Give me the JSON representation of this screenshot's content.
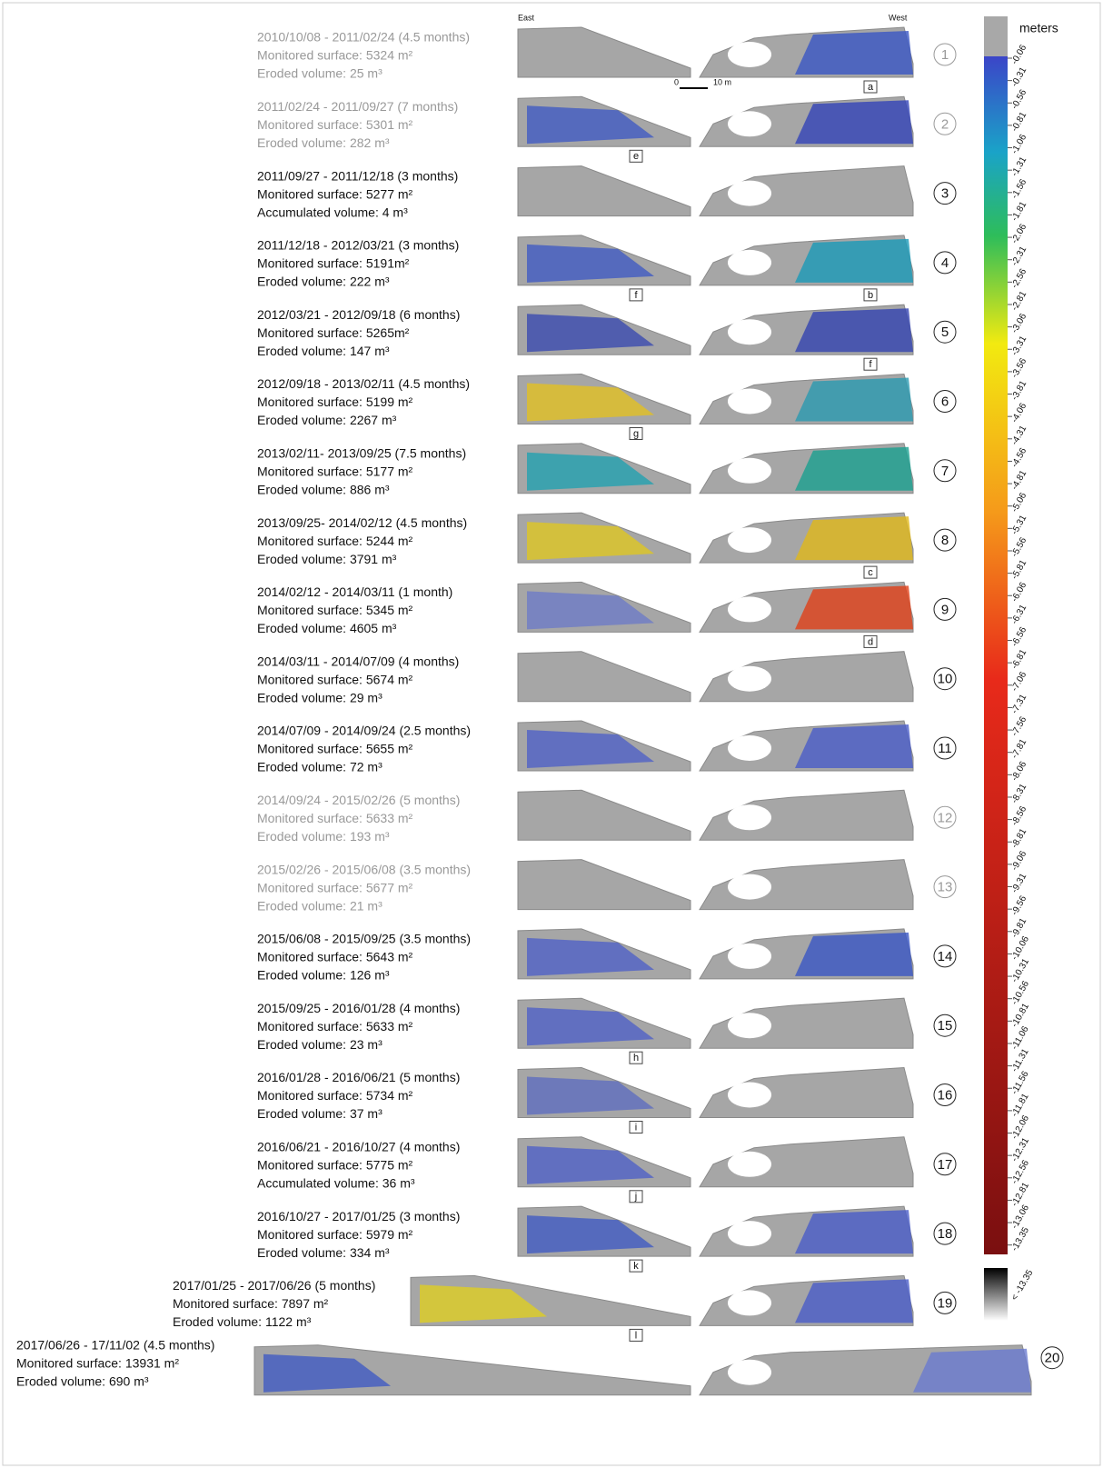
{
  "header": {
    "east": "East",
    "west": "West",
    "scale_start": "0",
    "scale_end": "10 m"
  },
  "rows": [
    {
      "number": "1",
      "period": "2010/10/08 - 2011/02/24 (4.5 months)",
      "surface": "Monitored surface: 5324 m²",
      "volume": "Eroded volume: 25 m³",
      "right_tag": "a",
      "muted": true
    },
    {
      "number": "2",
      "period": "2011/02/24 - 2011/09/27 (7 months)",
      "surface": "Monitored surface: 5301 m²",
      "volume": "Eroded volume: 282 m³",
      "left_tag": "e",
      "muted": true
    },
    {
      "number": "3",
      "period": "2011/09/27 - 2011/12/18 (3 months)",
      "surface": "Monitored surface: 5277 m²",
      "volume": "Accumulated volume: 4 m³"
    },
    {
      "number": "4",
      "period": "2011/12/18 - 2012/03/21 (3 months)",
      "surface": "Monitored surface: 5191m²",
      "volume": "Eroded volume: 222 m³",
      "left_tag": "f",
      "right_tag": "b"
    },
    {
      "number": "5",
      "period": "2012/03/21 - 2012/09/18 (6 months)",
      "surface": "Monitored surface: 5265m²",
      "volume": "Eroded volume: 147 m³",
      "right_tag": "f"
    },
    {
      "number": "6",
      "period": "2012/09/18 - 2013/02/11 (4.5 months)",
      "surface": "Monitored surface: 5199 m²",
      "volume": "Eroded volume: 2267 m³",
      "left_tag": "g"
    },
    {
      "number": "7",
      "period": "2013/02/11- 2013/09/25 (7.5 months)",
      "surface": "Monitored surface: 5177 m²",
      "volume": "Eroded volume: 886 m³"
    },
    {
      "number": "8",
      "period": "2013/09/25- 2014/02/12 (4.5 months)",
      "surface": "Monitored surface: 5244 m²",
      "volume": "Eroded volume: 3791 m³",
      "right_tag": "c"
    },
    {
      "number": "9",
      "period": "2014/02/12 - 2014/03/11 (1 month)",
      "surface": "Monitored surface: 5345 m²",
      "volume": "Eroded volume: 4605 m³",
      "right_tag": "d"
    },
    {
      "number": "10",
      "period": "2014/03/11 - 2014/07/09 (4 months)",
      "surface": "Monitored surface: 5674 m²",
      "volume": "Eroded volume: 29 m³"
    },
    {
      "number": "11",
      "period": "2014/07/09 - 2014/09/24 (2.5 months)",
      "surface": "Monitored surface: 5655 m²",
      "volume": "Eroded volume: 72 m³"
    },
    {
      "number": "12",
      "period": "2014/09/24 - 2015/02/26 (5 months)",
      "surface": "Monitored surface: 5633 m²",
      "volume": "Eroded volume: 193 m³",
      "muted": true
    },
    {
      "number": "13",
      "period": "2015/02/26 - 2015/06/08 (3.5 months)",
      "surface": "Monitored surface: 5677 m²",
      "volume": "Eroded volume: 21 m³",
      "muted": true
    },
    {
      "number": "14",
      "period": "2015/06/08 - 2015/09/25 (3.5 months)",
      "surface": "Monitored surface: 5643 m²",
      "volume": "Eroded volume: 126 m³"
    },
    {
      "number": "15",
      "period": "2015/09/25 - 2016/01/28 (4 months)",
      "surface": "Monitored surface: 5633 m²",
      "volume": "Eroded volume: 23 m³",
      "left_tag": "h"
    },
    {
      "number": "16",
      "period": "2016/01/28 - 2016/06/21 (5 months)",
      "surface": "Monitored surface: 5734 m²",
      "volume": "Eroded volume: 37 m³",
      "left_tag": "i"
    },
    {
      "number": "17",
      "period": "2016/06/21 - 2016/10/27 (4 months)",
      "surface": "Monitored surface: 5775 m²",
      "volume": "Accumulated volume: 36 m³",
      "left_tag": "j"
    },
    {
      "number": "18",
      "period": "2016/10/27 - 2017/01/25 (3 months)",
      "surface": "Monitored surface: 5979 m²",
      "volume": "Eroded volume: 334 m³",
      "left_tag": "k"
    },
    {
      "number": "19",
      "period": "2017/01/25 - 2017/06/26 (5 months)",
      "surface": "Monitored surface: 7897 m²",
      "volume": "Eroded volume: 1122 m³",
      "left_tag": "l"
    },
    {
      "number": "20",
      "period": "2017/06/26 - 17/11/02 (4.5 months)",
      "surface": "Monitored surface: 13931 m²",
      "volume": "Eroded volume: 690 m³"
    }
  ],
  "colorbar": {
    "unit": "meters",
    "below": "< -13.35",
    "labels": [
      "-0.06",
      "-0.31",
      "-0.56",
      "-0.81",
      "-1.06",
      "-1.31",
      "-1.56",
      "-1.81",
      "-2.06",
      "-2.31",
      "-2.56",
      "-2.81",
      "-3.06",
      "-3.31",
      "-3.56",
      "-3.81",
      "-4.06",
      "-4.31",
      "-4.56",
      "-4.81",
      "-5.06",
      "-5.31",
      "-5.56",
      "-5.81",
      "-6.06",
      "-6.31",
      "-6.56",
      "-6.81",
      "-7.06",
      "-7.31",
      "-7.56",
      "-7.81",
      "-8.06",
      "-8.31",
      "-8.56",
      "-8.81",
      "-9.06",
      "-9.31",
      "-9.56",
      "-9.81",
      "-10.06",
      "-10.31",
      "-10.56",
      "-10.81",
      "-11.06",
      "-11.31",
      "-11.56",
      "-11.81",
      "-12.06",
      "-12.31",
      "-12.56",
      "-12.81",
      "-13.06",
      "-13.35"
    ]
  }
}
